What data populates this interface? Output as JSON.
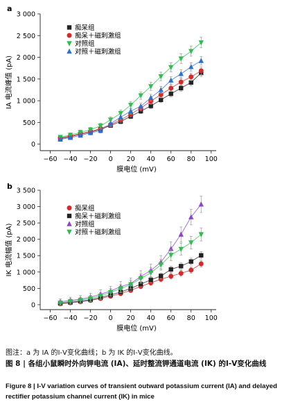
{
  "figure": {
    "note": "图注：a 为 IA 的Ⅰ-Ⅴ变化曲线；b 为 IK 的Ⅰ-Ⅴ变化曲线。",
    "caption_cn": "图 8  |  各组小鼠瞬时外向钾电流 (IA)、延时整流钾通道电流 (IK) 的Ⅰ-Ⅴ变化曲线",
    "caption_en": "Figure 8  |  I-V variation curves of transient outward potassium current (IA) and delayed rectifier potassium channel current (IK) in mice"
  },
  "chart_data": [
    {
      "panel": "a",
      "type": "line",
      "xlabel": "膜电位 (mV)",
      "ylabel": "IA 电流峰值 (pA)",
      "xlim": [
        -70,
        105
      ],
      "ylim": [
        -150,
        3000
      ],
      "xticks": [
        -60,
        -40,
        -20,
        0,
        20,
        40,
        60,
        80,
        100
      ],
      "yticks": [
        0,
        500,
        1000,
        1500,
        2000,
        2500,
        3000
      ],
      "x": [
        -50,
        -40,
        -30,
        -20,
        -10,
        0,
        10,
        20,
        30,
        40,
        50,
        60,
        70,
        80,
        90
      ],
      "legend_position": "top-left",
      "series": [
        {
          "name": "痴呆组",
          "color": "#222222",
          "marker": "square",
          "values": [
            130,
            170,
            230,
            280,
            340,
            430,
            520,
            640,
            760,
            880,
            1020,
            1160,
            1290,
            1420,
            1640
          ],
          "err": 80
        },
        {
          "name": "痴呆＋磁刺激组",
          "color": "#d42a2a",
          "marker": "circle",
          "values": [
            140,
            190,
            240,
            290,
            360,
            450,
            560,
            690,
            830,
            990,
            1140,
            1290,
            1430,
            1550,
            1690
          ],
          "err": 90
        },
        {
          "name": "对照组",
          "color": "#2fbf4f",
          "marker": "tri-down",
          "values": [
            160,
            210,
            270,
            330,
            420,
            560,
            710,
            900,
            1120,
            1330,
            1560,
            1770,
            1970,
            2140,
            2340
          ],
          "err": 120
        },
        {
          "name": "对照＋磁刺激组",
          "color": "#2d6fd6",
          "marker": "tri-up",
          "values": [
            110,
            150,
            200,
            260,
            310,
            470,
            620,
            760,
            870,
            1070,
            1250,
            1470,
            1620,
            1780,
            1920
          ],
          "err": 100
        }
      ]
    },
    {
      "panel": "b",
      "type": "line",
      "xlabel": "膜电位 (mV)",
      "ylabel": "IK 电流幅值 (pA)",
      "xlim": [
        -70,
        105
      ],
      "ylim": [
        -150,
        3500
      ],
      "xticks": [
        -60,
        -40,
        -20,
        0,
        20,
        40,
        60,
        80,
        100
      ],
      "yticks": [
        0,
        500,
        1000,
        1500,
        2000,
        2500,
        3000,
        3500
      ],
      "x": [
        -50,
        -40,
        -30,
        -20,
        -10,
        0,
        10,
        20,
        30,
        40,
        50,
        60,
        70,
        80,
        90
      ],
      "legend_position": "top-left",
      "series": [
        {
          "name": "痴呆组",
          "color": "#d42a2a",
          "marker": "circle",
          "values": [
            30,
            60,
            90,
            130,
            190,
            260,
            340,
            440,
            560,
            670,
            780,
            870,
            960,
            1060,
            1250
          ],
          "err": 100
        },
        {
          "name": "痴呆＋磁刺激组",
          "color": "#222222",
          "marker": "square",
          "values": [
            40,
            70,
            110,
            150,
            220,
            300,
            390,
            500,
            630,
            760,
            880,
            1080,
            1180,
            1320,
            1510
          ],
          "err": 110
        },
        {
          "name": "对照组",
          "color": "#8c44c9",
          "marker": "tri-up",
          "values": [
            90,
            130,
            170,
            230,
            320,
            420,
            550,
            650,
            860,
            1050,
            1300,
            1710,
            2150,
            2680,
            3070
          ],
          "err": 250
        },
        {
          "name": "对照＋磁刺激组",
          "color": "#2fbf4f",
          "marker": "tri-down",
          "values": [
            60,
            100,
            140,
            190,
            270,
            380,
            490,
            620,
            800,
            980,
            1220,
            1520,
            1700,
            1900,
            2150
          ],
          "err": 200
        }
      ]
    }
  ]
}
